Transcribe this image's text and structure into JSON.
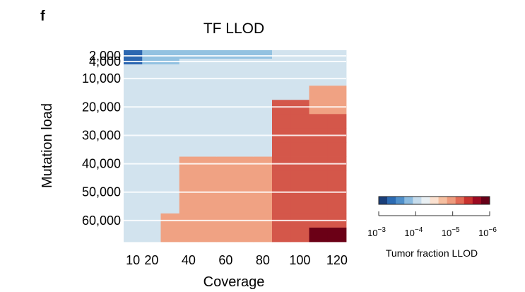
{
  "figure": {
    "panel_letter": "f"
  },
  "chart_data": {
    "type": "heatmap",
    "title": "TF LLOD",
    "xlabel": "Coverage",
    "ylabel": "Mutation load",
    "x": [
      10,
      20,
      30,
      40,
      50,
      60,
      70,
      80,
      90,
      100,
      110,
      120
    ],
    "x_tick_labels": [
      "10",
      "20",
      "40",
      "60",
      "80",
      "100",
      "120"
    ],
    "y": [
      2000,
      4000,
      6000,
      8000,
      10000,
      15000,
      20000,
      25000,
      30000,
      35000,
      40000,
      45000,
      50000,
      55000,
      60000,
      65000
    ],
    "y_tick_labels": [
      "2,000",
      "4,000",
      "10,000",
      "20,000",
      "30,000",
      "40,000",
      "50,000",
      "60,000"
    ],
    "log10_llod_columns_by_x": {
      "10": [
        -3.5,
        -3.5,
        -4.0,
        -4.0,
        -4.0,
        -4.0,
        -4.0,
        -4.0,
        -4.0,
        -4.0,
        -4.0,
        -4.0,
        -4.0,
        -4.0,
        -4.0,
        -4.0
      ],
      "20": [
        -3.8,
        -3.8,
        -4.0,
        -4.0,
        -4.0,
        -4.0,
        -4.0,
        -4.0,
        -4.0,
        -4.0,
        -4.0,
        -4.0,
        -4.0,
        -4.0,
        -4.0,
        -4.0
      ],
      "30": [
        -3.8,
        -3.8,
        -4.0,
        -4.0,
        -4.0,
        -4.0,
        -4.0,
        -4.0,
        -4.0,
        -4.0,
        -4.0,
        -4.0,
        -4.0,
        -4.0,
        -5.0,
        -5.0
      ],
      "40": [
        -3.8,
        -4.0,
        -4.0,
        -4.0,
        -4.0,
        -4.0,
        -4.0,
        -4.0,
        -4.0,
        -4.0,
        -5.0,
        -5.0,
        -5.0,
        -5.0,
        -5.0,
        -5.0
      ],
      "50": [
        -3.8,
        -4.0,
        -4.0,
        -4.0,
        -4.0,
        -4.0,
        -4.0,
        -4.0,
        -4.0,
        -4.0,
        -5.0,
        -5.0,
        -5.0,
        -5.0,
        -5.0,
        -5.0
      ],
      "60": [
        -3.8,
        -4.0,
        -4.0,
        -4.0,
        -4.0,
        -4.0,
        -4.0,
        -4.0,
        -4.0,
        -4.0,
        -5.0,
        -5.0,
        -5.0,
        -5.0,
        -5.0,
        -5.0
      ],
      "70": [
        -3.8,
        -4.0,
        -4.0,
        -4.0,
        -4.0,
        -4.0,
        -4.0,
        -4.0,
        -4.0,
        -4.0,
        -5.0,
        -5.0,
        -5.0,
        -5.0,
        -5.0,
        -5.0
      ],
      "80": [
        -3.8,
        -4.0,
        -4.0,
        -4.0,
        -4.0,
        -4.0,
        -4.0,
        -4.0,
        -4.0,
        -4.0,
        -5.0,
        -5.0,
        -5.0,
        -5.0,
        -5.0,
        -5.0
      ],
      "90": [
        -4.0,
        -4.0,
        -4.0,
        -4.0,
        -4.0,
        -4.0,
        -5.6,
        -5.6,
        -5.6,
        -5.6,
        -5.6,
        -5.6,
        -5.6,
        -5.6,
        -5.6,
        -5.6
      ],
      "100": [
        -4.0,
        -4.0,
        -4.0,
        -4.0,
        -4.0,
        -4.0,
        -5.6,
        -5.6,
        -5.6,
        -5.6,
        -5.6,
        -5.6,
        -5.6,
        -5.6,
        -5.6,
        -5.6
      ],
      "110": [
        -4.0,
        -4.0,
        -4.0,
        -4.0,
        -4.0,
        -5.0,
        -5.0,
        -5.6,
        -5.6,
        -5.6,
        -5.6,
        -5.6,
        -5.6,
        -5.6,
        -5.6,
        -6.0
      ],
      "120": [
        -4.0,
        -4.0,
        -4.0,
        -4.0,
        -4.0,
        -5.0,
        -5.0,
        -5.6,
        -5.6,
        -5.6,
        -5.6,
        -5.6,
        -5.6,
        -5.6,
        -5.6,
        -6.0
      ]
    },
    "grid": true,
    "colorbar": {
      "label": "Tumor fraction LLOD",
      "log10_range": [
        -3,
        -6
      ],
      "tick_values": [
        -3,
        -4,
        -5,
        -6
      ],
      "tick_base": "10",
      "tick_exponents": [
        "−3",
        "−4",
        "−5",
        "−6"
      ],
      "colors": [
        "#1a3f7a",
        "#2c6bb3",
        "#4f8fca",
        "#8bbbe0",
        "#c6dcec",
        "#e9f0f4",
        "#fbe1d0",
        "#f6bfa0",
        "#ee9b7d",
        "#e26a55",
        "#c8322e",
        "#9c0a21",
        "#670018"
      ]
    },
    "value_colors": {
      "-3.5": "#2c67b1",
      "-3.8": "#93c2e1",
      "-4.0": "#d2e3ee",
      "-5.0": "#f0a283",
      "-5.6": "#d4574a",
      "-6.0": "#6b0016"
    }
  }
}
